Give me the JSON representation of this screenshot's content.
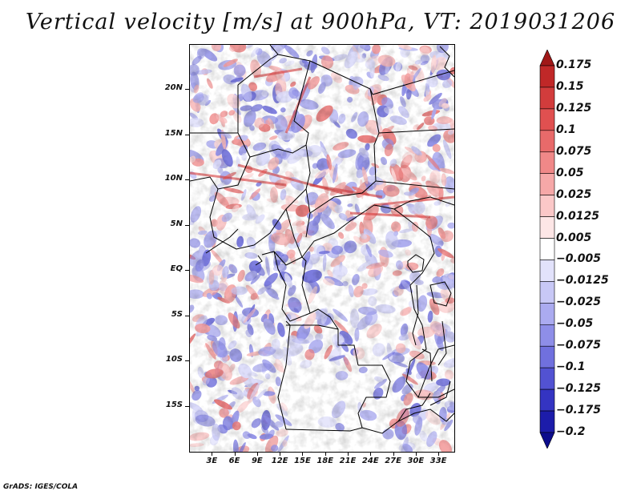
{
  "title": "Vertical velocity [m/s] at 900hPa, VT: 2019031206",
  "footer": "GrADS: IGES/COLA",
  "lat_labels": [
    "20N",
    "15N",
    "10N",
    "5N",
    "EQ",
    "5S",
    "10S",
    "15S"
  ],
  "lat_values": [
    20,
    15,
    10,
    5,
    0,
    -5,
    -10,
    -15
  ],
  "lon_labels": [
    "3E",
    "6E",
    "9E",
    "12E",
    "15E",
    "18E",
    "21E",
    "24E",
    "27E",
    "30E",
    "33E"
  ],
  "lon_values": [
    3,
    6,
    9,
    12,
    15,
    18,
    21,
    24,
    27,
    30,
    33
  ],
  "extent": {
    "lon_min": 0,
    "lon_max": 35,
    "lat_min": -20,
    "lat_max": 25
  },
  "colorbar": {
    "levels": [
      "0.175",
      "0.15",
      "0.125",
      "0.1",
      "0.075",
      "0.05",
      "0.025",
      "0.0125",
      "0.005",
      "−0.005",
      "−0.0125",
      "−0.025",
      "−0.05",
      "−0.075",
      "−0.1",
      "−0.125",
      "−0.175",
      "−0.2"
    ],
    "colors": [
      "#a01818",
      "#c02828",
      "#d23c3c",
      "#e05050",
      "#e86a6a",
      "#f08888",
      "#f6a8a8",
      "#fbc8c8",
      "#fde6e6",
      "#ffffff",
      "#e2e2fb",
      "#c8c8f6",
      "#ababf0",
      "#8e8ee8",
      "#7070de",
      "#5252d2",
      "#3434c2",
      "#1c1caa",
      "#0c0c8c"
    ]
  },
  "colors": {
    "positive": "#e05050",
    "negative": "#6a6ade",
    "border": "#000000"
  }
}
